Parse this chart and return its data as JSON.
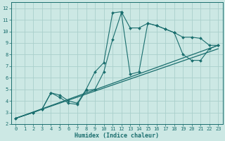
{
  "xlabel": "Humidex (Indice chaleur)",
  "xlim": [
    -0.5,
    23.5
  ],
  "ylim": [
    2,
    12.5
  ],
  "xticks": [
    0,
    1,
    2,
    3,
    4,
    5,
    6,
    7,
    8,
    9,
    10,
    11,
    12,
    13,
    14,
    15,
    16,
    17,
    18,
    19,
    20,
    21,
    22,
    23
  ],
  "yticks": [
    2,
    3,
    4,
    5,
    6,
    7,
    8,
    9,
    10,
    11,
    12
  ],
  "bg_color": "#cce8e4",
  "grid_color": "#aacfcb",
  "line_color": "#1a6e6e",
  "line1_x": [
    0,
    2,
    3,
    4,
    5,
    6,
    7,
    8,
    9,
    10,
    11,
    12,
    13,
    14,
    15,
    16,
    17,
    18,
    19,
    20,
    21,
    22,
    23
  ],
  "line1_y": [
    2.5,
    3.0,
    3.3,
    4.7,
    4.5,
    4.0,
    3.8,
    5.0,
    6.5,
    7.3,
    11.6,
    11.7,
    10.3,
    10.3,
    10.7,
    10.5,
    10.2,
    9.9,
    9.5,
    9.5,
    9.4,
    8.8,
    8.8
  ],
  "line2_x": [
    0,
    2,
    3,
    4,
    5,
    6,
    7,
    8,
    9,
    10,
    11,
    12,
    13,
    14,
    15,
    16,
    17,
    18,
    19,
    20,
    21,
    22,
    23
  ],
  "line2_y": [
    2.5,
    3.0,
    3.3,
    4.7,
    4.3,
    3.8,
    3.7,
    4.9,
    5.0,
    6.5,
    9.3,
    11.6,
    6.3,
    6.5,
    10.7,
    10.5,
    10.2,
    9.9,
    8.0,
    7.5,
    7.5,
    8.5,
    8.8
  ],
  "line3_x": [
    0,
    23
  ],
  "line3_y": [
    2.5,
    8.8
  ],
  "line4_x": [
    0,
    23
  ],
  "line4_y": [
    2.5,
    8.5
  ]
}
